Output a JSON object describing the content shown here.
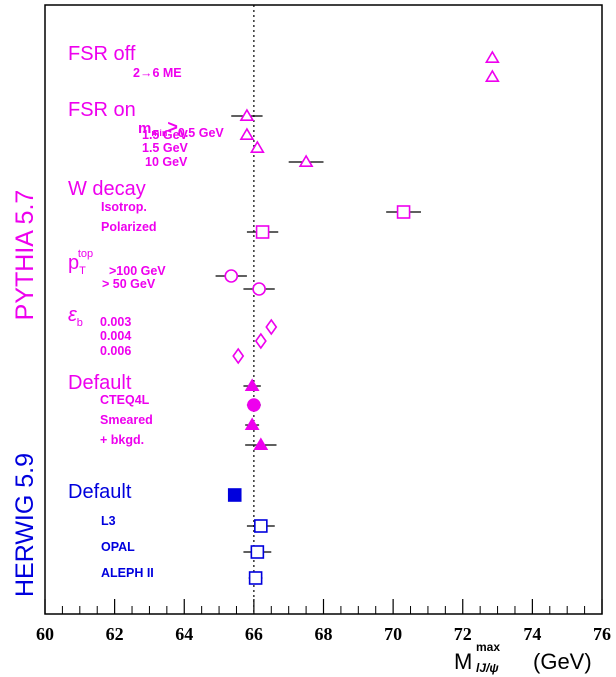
{
  "chart_data": {
    "type": "scatter",
    "xlim": [
      60,
      76
    ],
    "x_ticks": [
      60,
      62,
      64,
      66,
      68,
      70,
      72,
      74,
      76
    ],
    "xlabel": {
      "main": "M",
      "sup": "max",
      "sub": "lJ/ψ",
      "unit": "(GeV)"
    },
    "reference_line": {
      "x": 66,
      "style": "dotted"
    },
    "grid": false,
    "colors": {
      "pythia": "#ee00ee",
      "herwig": "#0000dd",
      "marker_edge": "#000000"
    },
    "group_labels": [
      {
        "text": "PYTHIA 5.7",
        "color": "pythia"
      },
      {
        "text": "HERWIG 5.9",
        "color": "herwig"
      }
    ],
    "rows": [
      {
        "name": "FSR off",
        "size": "big",
        "color": "pythia"
      },
      {
        "name": "2→6 ME",
        "size": "small",
        "color": "pythia",
        "x": 72.85,
        "xerr": 0,
        "marker": "triangle-open"
      },
      {
        "name": "",
        "color": "pythia",
        "x": 72.85,
        "xerr": 0,
        "marker": "triangle-open"
      },
      {
        "name": "FSR on",
        "size": "big",
        "color": "pythia"
      },
      {
        "name": "m_min > 0.5 GeV",
        "display": [
          "m",
          "min",
          ">",
          "0.5 GeV"
        ],
        "size": "small",
        "color": "pythia",
        "x": 65.8,
        "xerr": 0.45,
        "marker": "triangle-open"
      },
      {
        "name": "1.5 GeV",
        "size": "small",
        "color": "pythia",
        "x": 65.8,
        "xerr": 0,
        "marker": "triangle-open"
      },
      {
        "name": "1.5 GeV",
        "size": "small",
        "color": "pythia",
        "x": 66.1,
        "xerr": 0,
        "marker": "triangle-open"
      },
      {
        "name": "10 GeV",
        "size": "small",
        "color": "pythia",
        "x": 67.5,
        "xerr": 0.5,
        "marker": "triangle-open"
      },
      {
        "name": "W decay",
        "size": "big",
        "color": "pythia"
      },
      {
        "name": "Isotrop.",
        "size": "small",
        "color": "pythia",
        "x": 70.3,
        "xerr": 0.5,
        "marker": "square-open"
      },
      {
        "name": "Polarized",
        "size": "small",
        "color": "pythia",
        "x": 66.25,
        "xerr": 0.45,
        "marker": "square-open"
      },
      {
        "name": "p_T^top",
        "display": [
          "p",
          "T",
          "top"
        ],
        "size": "big",
        "color": "pythia"
      },
      {
        "name": ">100 GeV",
        "size": "small",
        "color": "pythia",
        "x": 65.35,
        "xerr": 0.45,
        "marker": "circle-open"
      },
      {
        "name": "> 50 GeV",
        "size": "small",
        "color": "pythia",
        "x": 66.15,
        "xerr": 0.45,
        "marker": "circle-open"
      },
      {
        "name": "ε_b",
        "display": [
          "ε",
          "b"
        ],
        "size": "big",
        "color": "pythia"
      },
      {
        "name": "0.003",
        "size": "small",
        "color": "pythia",
        "x": 66.5,
        "xerr": 0,
        "marker": "diamond-open"
      },
      {
        "name": "0.004",
        "size": "small",
        "color": "pythia",
        "x": 66.2,
        "xerr": 0,
        "marker": "diamond-open"
      },
      {
        "name": "0.006",
        "size": "small",
        "color": "pythia",
        "x": 65.55,
        "xerr": 0,
        "marker": "diamond-open"
      },
      {
        "name": "Default",
        "size": "big",
        "color": "pythia",
        "x": 65.95,
        "xerr": 0.25,
        "marker": "triangle-filled"
      },
      {
        "name": "CTEQ4L",
        "size": "small",
        "color": "pythia",
        "x": 66.0,
        "xerr": 0.2,
        "marker": "circle-filled"
      },
      {
        "name": "Smeared",
        "size": "small",
        "color": "pythia",
        "x": 65.95,
        "xerr": 0.2,
        "marker": "triangle-filled"
      },
      {
        "name": "+ bkgd.",
        "size": "small",
        "color": "pythia",
        "x": 66.2,
        "xerr": 0.45,
        "marker": "triangle-filled"
      },
      {
        "name": "Default",
        "size": "big",
        "color": "herwig",
        "x": 65.45,
        "xerr": 0.15,
        "marker": "square-filled"
      },
      {
        "name": "L3",
        "size": "small",
        "color": "herwig",
        "x": 66.2,
        "xerr": 0.4,
        "marker": "square-open"
      },
      {
        "name": "OPAL",
        "size": "small",
        "color": "herwig",
        "x": 66.1,
        "xerr": 0.4,
        "marker": "square-open"
      },
      {
        "name": "ALEPH II",
        "size": "small",
        "color": "herwig",
        "x": 66.05,
        "xerr": 0.2,
        "marker": "square-open"
      }
    ]
  }
}
